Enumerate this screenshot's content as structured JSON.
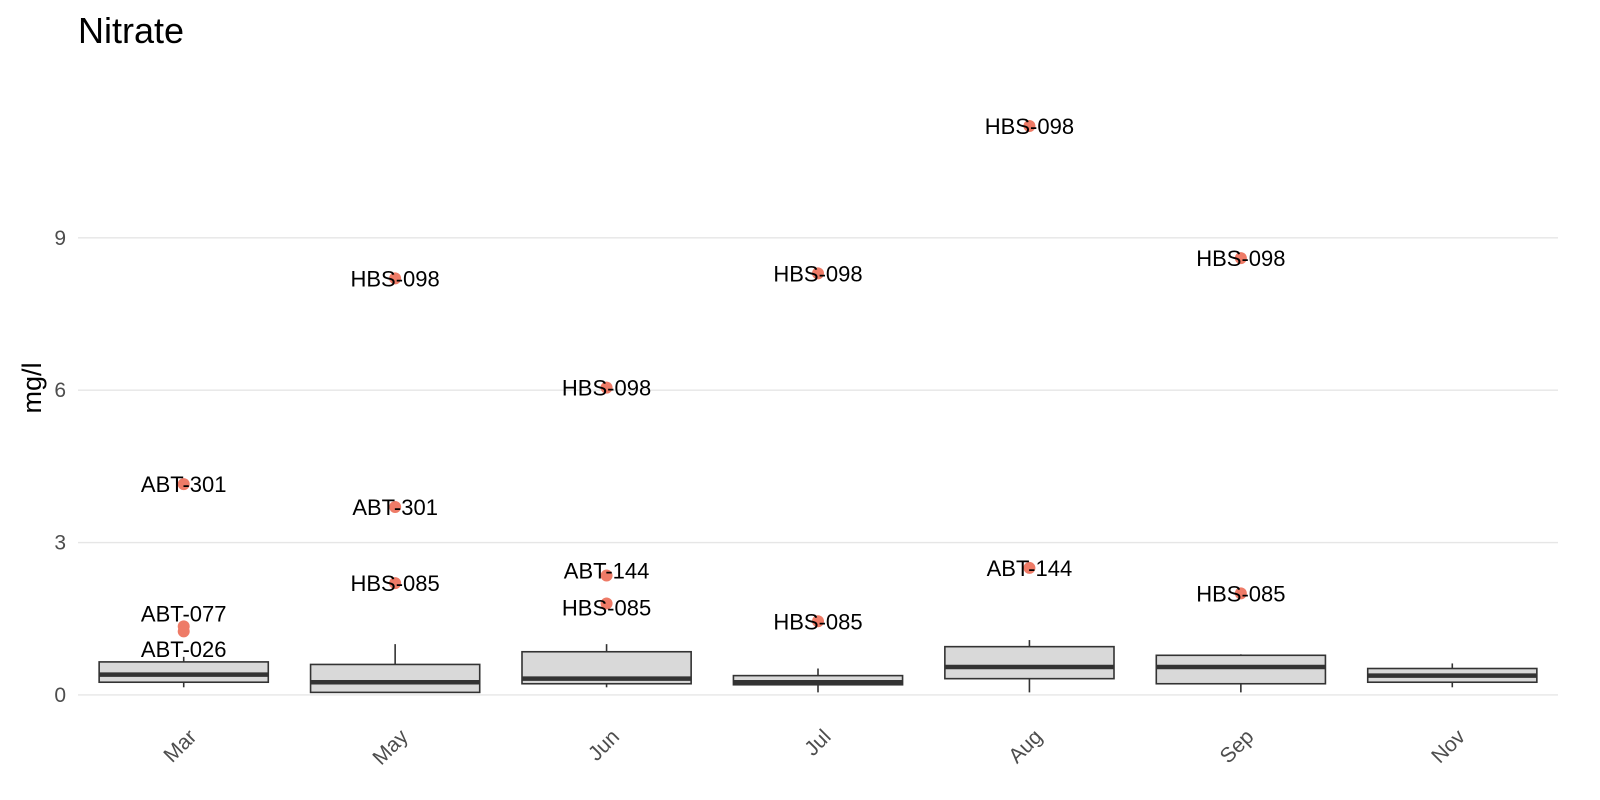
{
  "chart_data": {
    "type": "box",
    "title": "Nitrate",
    "xlabel": "",
    "ylabel": "mg/l",
    "ylim": [
      -0.1,
      12.5
    ],
    "yticks": [
      0,
      3,
      6,
      9
    ],
    "grid": true,
    "categories": [
      "Mar",
      "May",
      "Jun",
      "Jul",
      "Aug",
      "Sep",
      "Nov"
    ],
    "boxes": [
      {
        "category": "Mar",
        "lower_whisker": 0.15,
        "q1": 0.25,
        "median": 0.4,
        "q3": 0.65,
        "upper_whisker": 0.75
      },
      {
        "category": "May",
        "lower_whisker": 0.05,
        "q1": 0.05,
        "median": 0.25,
        "q3": 0.6,
        "upper_whisker": 1.0
      },
      {
        "category": "Jun",
        "lower_whisker": 0.15,
        "q1": 0.22,
        "median": 0.32,
        "q3": 0.85,
        "upper_whisker": 1.0
      },
      {
        "category": "Jul",
        "lower_whisker": 0.05,
        "q1": 0.2,
        "median": 0.25,
        "q3": 0.38,
        "upper_whisker": 0.52
      },
      {
        "category": "Aug",
        "lower_whisker": 0.05,
        "q1": 0.32,
        "median": 0.55,
        "q3": 0.95,
        "upper_whisker": 1.08
      },
      {
        "category": "Sep",
        "lower_whisker": 0.05,
        "q1": 0.22,
        "median": 0.55,
        "q3": 0.78,
        "upper_whisker": 0.8
      },
      {
        "category": "Nov",
        "lower_whisker": 0.15,
        "q1": 0.25,
        "median": 0.38,
        "q3": 0.52,
        "upper_whisker": 0.62
      }
    ],
    "outliers": [
      {
        "category": "Mar",
        "y": 4.15,
        "label": "ABT-301",
        "label_y": 4.15
      },
      {
        "category": "Mar",
        "y": 1.35,
        "label": "ABT-077",
        "label_y": 1.6
      },
      {
        "category": "Mar",
        "y": 1.25,
        "label": "ABT-026",
        "label_y": 0.9
      },
      {
        "category": "May",
        "y": 8.2,
        "label": "HBS-098",
        "label_y": 8.2
      },
      {
        "category": "May",
        "y": 3.7,
        "label": "ABT-301",
        "label_y": 3.7
      },
      {
        "category": "May",
        "y": 2.2,
        "label": "HBS-085",
        "label_y": 2.2
      },
      {
        "category": "Jun",
        "y": 6.05,
        "label": "HBS-098",
        "label_y": 6.05
      },
      {
        "category": "Jun",
        "y": 2.35,
        "label": "ABT-144",
        "label_y": 2.45
      },
      {
        "category": "Jun",
        "y": 1.8,
        "label": "HBS-085",
        "label_y": 1.72
      },
      {
        "category": "Jul",
        "y": 8.3,
        "label": "HBS-098",
        "label_y": 8.3
      },
      {
        "category": "Jul",
        "y": 1.45,
        "label": "HBS-085",
        "label_y": 1.45
      },
      {
        "category": "Aug",
        "y": 11.2,
        "label": "HBS-098",
        "label_y": 11.2
      },
      {
        "category": "Aug",
        "y": 2.5,
        "label": "ABT-144",
        "label_y": 2.5
      },
      {
        "category": "Sep",
        "y": 8.6,
        "label": "HBS-098",
        "label_y": 8.6
      },
      {
        "category": "Sep",
        "y": 2.0,
        "label": "HBS-085",
        "label_y": 2.0
      }
    ],
    "colors": {
      "box_fill": "#d9d9d9",
      "box_stroke": "#333333",
      "outlier": "#ee7b67",
      "grid": "#e6e6e6"
    }
  }
}
